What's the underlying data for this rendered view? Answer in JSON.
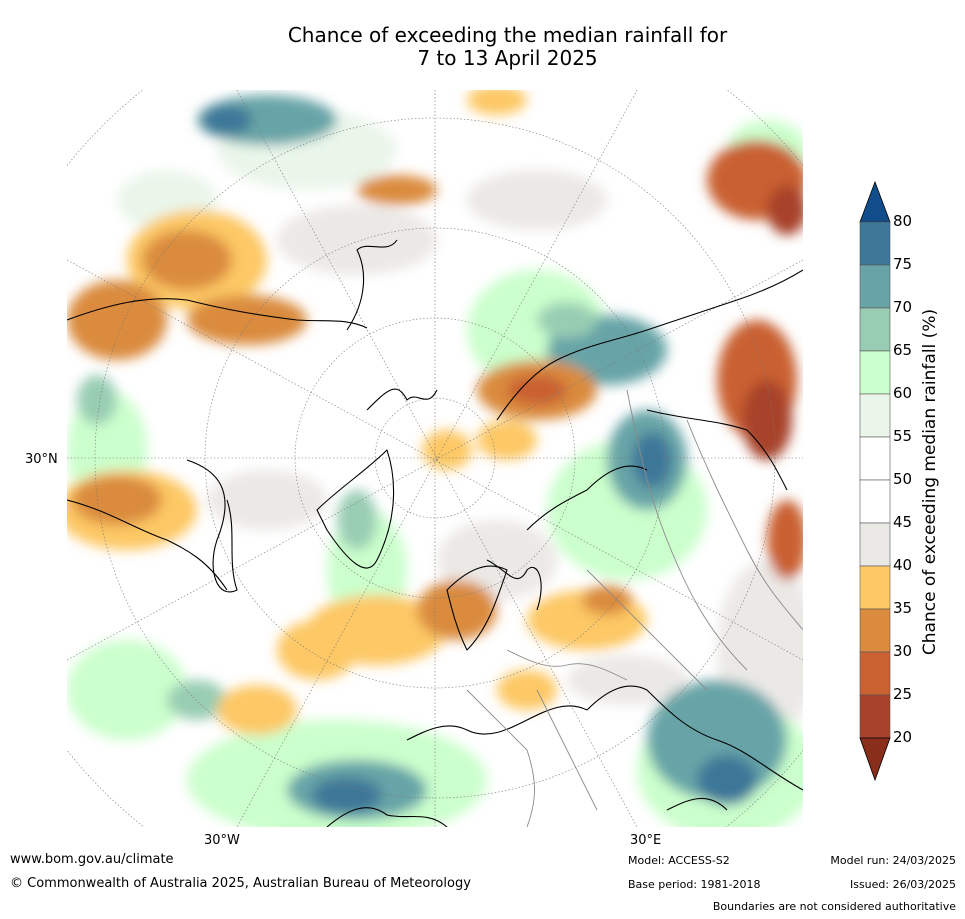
{
  "title_line1": "Chance of exceeding the median rainfall for",
  "title_line2": "7 to 13 April 2025",
  "axis_labels": {
    "lat": "30°N",
    "lon_left": "30°W",
    "lon_right": "30°E"
  },
  "colorbar": {
    "title": "Chance of exceeding median rainfall (%)",
    "ticks": [
      "20",
      "25",
      "30",
      "35",
      "40",
      "45",
      "50",
      "55",
      "60",
      "65",
      "70",
      "75",
      "80"
    ],
    "colors": [
      "#a8432b",
      "#c96131",
      "#da8b3e",
      "#fdc865",
      "#ebe9e6",
      "#ffffff",
      "#ffffff",
      "#eaf6ea",
      "#cbffcc",
      "#99cdb3",
      "#68a4a7",
      "#3c7798"
    ],
    "under_color": "#8a2e1c",
    "over_color": "#124d8b"
  },
  "footer": {
    "website": "www.bom.gov.au/climate",
    "copyright": "© Commonwealth of Australia 2025, Australian Bureau of Meteorology",
    "model": "Model: ACCESS-S2",
    "base_period": "Base period: 1981-2018",
    "model_run": "Model run: 24/03/2025",
    "issued": "Issued: 26/03/2025",
    "disclaimer": "Boundaries are not considered authoritative"
  }
}
